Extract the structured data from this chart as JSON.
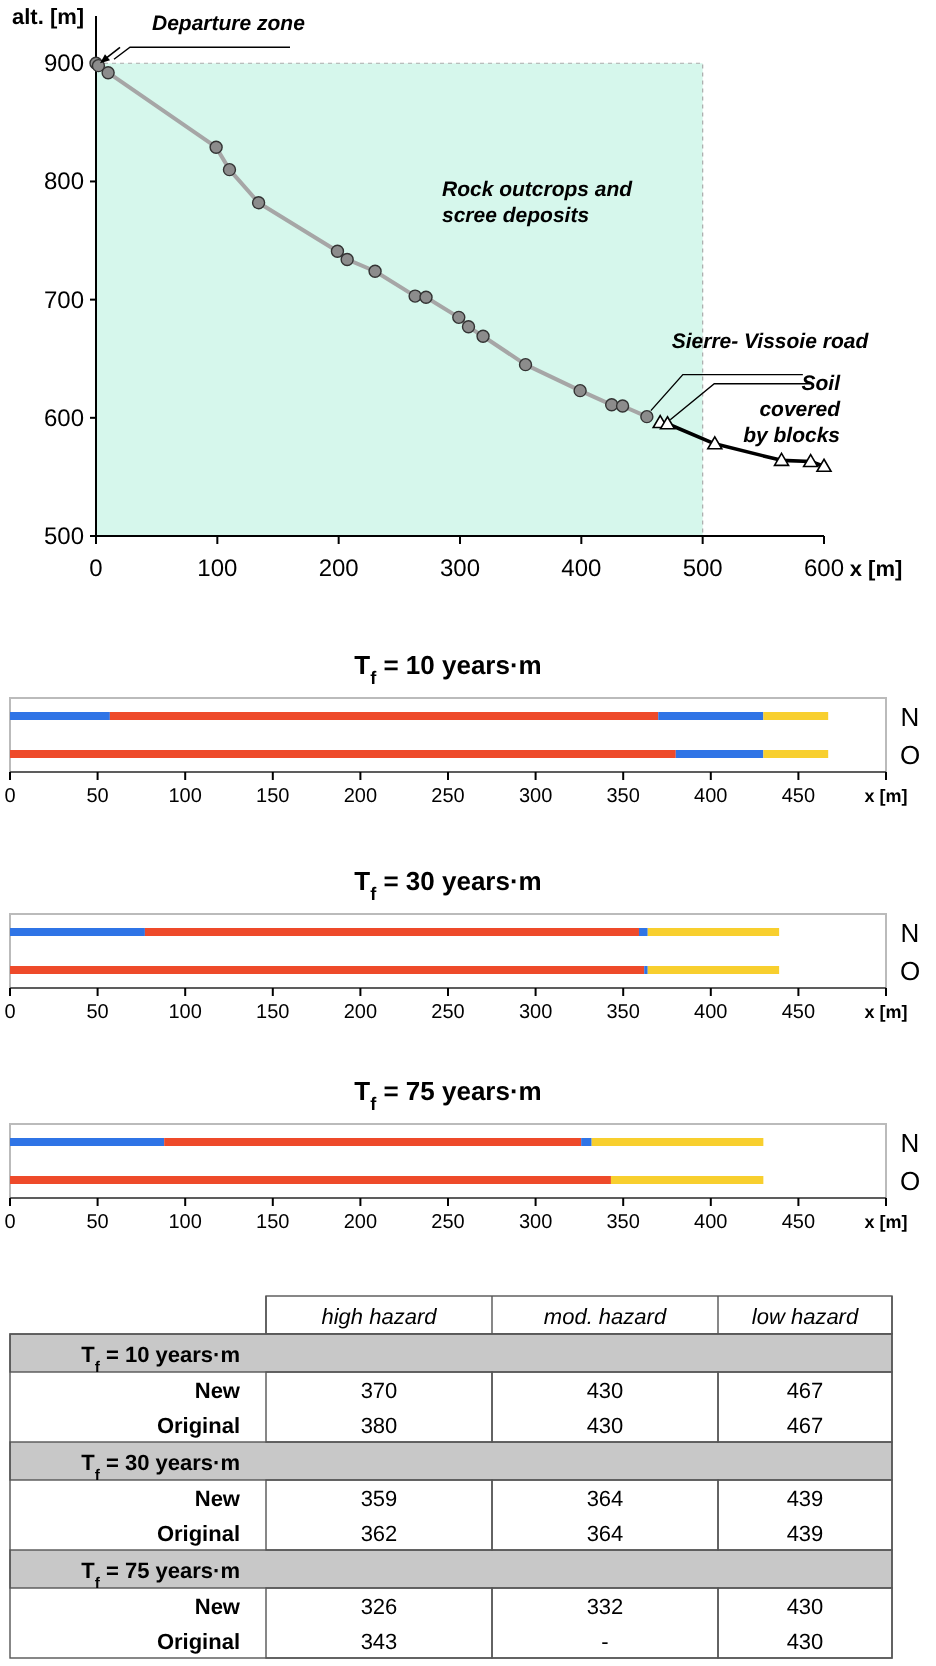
{
  "chart_data": [
    {
      "type": "line",
      "xlabel": "x [m]",
      "ylabel": "alt. [m]",
      "xlim": [
        0,
        600
      ],
      "ylim": [
        500,
        940
      ],
      "xticks": [
        0,
        100,
        200,
        300,
        400,
        500,
        600
      ],
      "yticks": [
        500,
        600,
        700,
        800,
        900
      ],
      "grid": false,
      "line_style": "solid",
      "series": [
        {
          "color": "#a6a6a6",
          "marker": "circle",
          "x": [
            0,
            2,
            10,
            99,
            110,
            134,
            199,
            207,
            230,
            263,
            272,
            299,
            307,
            319,
            354,
            399,
            425,
            434,
            454
          ],
          "values": [
            900,
            898,
            892,
            829,
            810,
            782,
            741,
            734,
            724,
            703,
            702,
            685,
            677,
            669,
            645,
            623,
            611,
            610,
            601
          ]
        },
        {
          "color": "#000000",
          "marker": "triangle",
          "x": [
            465,
            471,
            510,
            565,
            589,
            600
          ],
          "values": [
            596,
            595,
            578,
            564,
            563,
            559
          ]
        }
      ],
      "bands": [
        {
          "axis": "x",
          "from": 0,
          "to": 500,
          "color": "#d6f7ec"
        }
      ],
      "annotations": [
        {
          "text": "Departure zone",
          "x": 0,
          "y": 900
        },
        "Rock outcrops and scree deposits",
        {
          "text": "Sierre- Vissoie road",
          "x": 454,
          "y": 601
        },
        {
          "text": "Soil covered by blocks",
          "x": 470,
          "y": 595
        }
      ]
    },
    {
      "type": "bar",
      "orientation": "horizontal",
      "stacked": true,
      "title": "T$_{f}$ = 10 years·m",
      "xlabel": "x [m]",
      "categories": [
        "N",
        "O"
      ],
      "xlim": [
        0,
        500
      ],
      "xticks": [
        0,
        50,
        100,
        150,
        200,
        250,
        300,
        350,
        400,
        450
      ],
      "series": [
        {
          "color": "#2f74e6",
          "values": [
            57,
            0
          ]
        },
        {
          "color": "#ee4a2a",
          "values": [
            313,
            380
          ]
        },
        {
          "color": "#2f74e6",
          "values": [
            60,
            50
          ]
        },
        {
          "color": "#f8cf2e",
          "values": [
            37,
            37
          ]
        }
      ]
    },
    {
      "type": "bar",
      "orientation": "horizontal",
      "stacked": true,
      "title": "T$_{f}$ = 30 years·m",
      "xlabel": "x [m]",
      "categories": [
        "N",
        "O"
      ],
      "xlim": [
        0,
        500
      ],
      "xticks": [
        0,
        50,
        100,
        150,
        200,
        250,
        300,
        350,
        400,
        450
      ],
      "series": [
        {
          "color": "#2f74e6",
          "values": [
            77,
            0
          ]
        },
        {
          "color": "#ee4a2a",
          "values": [
            282,
            362
          ]
        },
        {
          "color": "#2f74e6",
          "values": [
            5,
            2
          ]
        },
        {
          "color": "#f8cf2e",
          "values": [
            75,
            75
          ]
        }
      ]
    },
    {
      "type": "bar",
      "orientation": "horizontal",
      "stacked": true,
      "title": "T$_{f}$ = 75 years·m",
      "xlabel": "x [m]",
      "categories": [
        "N",
        "O"
      ],
      "xlim": [
        0,
        500
      ],
      "xticks": [
        0,
        50,
        100,
        150,
        200,
        250,
        300,
        350,
        400,
        450
      ],
      "series": [
        {
          "color": "#2f74e6",
          "values": [
            88,
            0
          ]
        },
        {
          "color": "#ee4a2a",
          "values": [
            238,
            343
          ]
        },
        {
          "color": "#2f74e6",
          "values": [
            6,
            0
          ]
        },
        {
          "color": "#f8cf2e",
          "values": [
            98,
            87
          ]
        }
      ]
    },
    {
      "type": "other",
      "categories": [
        "high hazard",
        "mod. hazard",
        "low hazard"
      ],
      "y_categories": [
        "T$_{f}$ = 10 years·m",
        "New",
        "Original",
        "T$_{f}$ = 30 years·m",
        "New",
        "Original",
        "T$_{f}$ = 75 years·m",
        "New",
        "Original"
      ],
      "cell_labels": [
        [
          null,
          null,
          null
        ],
        [
          "370",
          "430",
          "467"
        ],
        [
          "380",
          "430",
          "467"
        ],
        [
          null,
          null,
          null
        ],
        [
          "359",
          "364",
          "439"
        ],
        [
          "362",
          "364",
          "439"
        ],
        [
          null,
          null,
          null
        ],
        [
          "326",
          "332",
          "430"
        ],
        [
          "343",
          "-",
          "430"
        ]
      ]
    }
  ]
}
